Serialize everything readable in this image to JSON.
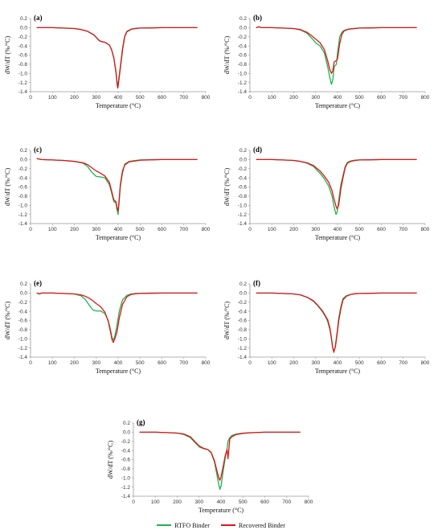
{
  "colors": {
    "rtfo": "#1db44a",
    "recovered": "#e0141c",
    "axis": "#9a9a9a"
  },
  "legend": {
    "rtfo": "RTFO Binder",
    "recovered": "Recovered Binder"
  },
  "chart_data": [
    {
      "type": "line",
      "label": "(a)",
      "xlabel": "Temperature (°C)",
      "ylabel": "dW/dT (%/°C)",
      "xlim": [
        0,
        800
      ],
      "ylim": [
        -1.4,
        0.2
      ],
      "xticks": [
        0,
        100,
        200,
        300,
        400,
        500,
        600,
        700,
        800
      ],
      "yticks": [
        0.2,
        0,
        -0.2,
        -0.4,
        -0.6,
        -0.8,
        -1.0,
        -1.2,
        -1.4
      ],
      "series": [
        {
          "name": "RTFO Binder",
          "color": "#1db44a",
          "x": [
            30,
            100,
            150,
            200,
            230,
            260,
            290,
            310,
            320,
            340,
            360,
            370,
            380,
            390,
            395,
            398,
            400,
            410,
            420,
            430,
            440,
            460,
            480,
            500,
            550,
            600,
            650,
            700,
            760
          ],
          "y": [
            0,
            0,
            -0.01,
            -0.02,
            -0.04,
            -0.08,
            -0.16,
            -0.26,
            -0.3,
            -0.32,
            -0.38,
            -0.48,
            -0.65,
            -0.95,
            -1.18,
            -1.25,
            -1.22,
            -0.85,
            -0.45,
            -0.18,
            -0.08,
            -0.03,
            -0.015,
            -0.01,
            -0.005,
            0,
            0,
            0,
            0
          ]
        },
        {
          "name": "Recovered Binder",
          "color": "#e0141c",
          "x": [
            30,
            100,
            150,
            200,
            230,
            260,
            290,
            310,
            320,
            340,
            360,
            370,
            380,
            390,
            395,
            398,
            400,
            410,
            420,
            430,
            440,
            460,
            480,
            500,
            550,
            600,
            650,
            700,
            760
          ],
          "y": [
            0,
            0,
            -0.01,
            -0.02,
            -0.04,
            -0.08,
            -0.16,
            -0.27,
            -0.3,
            -0.32,
            -0.38,
            -0.48,
            -0.66,
            -0.98,
            -1.22,
            -1.32,
            -1.28,
            -0.9,
            -0.5,
            -0.2,
            -0.09,
            -0.035,
            -0.02,
            -0.01,
            -0.005,
            0,
            0,
            0,
            0
          ]
        }
      ]
    },
    {
      "type": "line",
      "label": "(b)",
      "xlabel": "Temperature (°C)",
      "ylabel": "dW/dT (%/°C)",
      "xlim": [
        0,
        800
      ],
      "ylim": [
        -1.4,
        0.2
      ],
      "xticks": [
        0,
        100,
        200,
        300,
        400,
        500,
        600,
        700,
        800
      ],
      "yticks": [
        0.2,
        0,
        -0.2,
        -0.4,
        -0.6,
        -0.8,
        -1.0,
        -1.2,
        -1.4
      ],
      "series": [
        {
          "name": "RTFO Binder",
          "color": "#1db44a",
          "x": [
            30,
            40,
            50,
            100,
            150,
            200,
            230,
            260,
            280,
            300,
            320,
            340,
            355,
            365,
            372,
            378,
            385,
            395,
            400,
            410,
            420,
            430,
            450,
            480,
            500,
            550,
            600,
            700,
            760
          ],
          "y": [
            0,
            0.02,
            0,
            0,
            -0.01,
            -0.02,
            -0.05,
            -0.12,
            -0.22,
            -0.33,
            -0.4,
            -0.55,
            -0.85,
            -1.1,
            -1.24,
            -1.15,
            -0.85,
            -0.8,
            -0.55,
            -0.2,
            -0.1,
            -0.06,
            -0.03,
            -0.015,
            -0.01,
            -0.005,
            0,
            0,
            0
          ]
        },
        {
          "name": "Recovered Binder",
          "color": "#e0141c",
          "x": [
            30,
            40,
            50,
            100,
            150,
            200,
            230,
            260,
            280,
            300,
            320,
            340,
            355,
            365,
            372,
            378,
            385,
            395,
            400,
            410,
            420,
            430,
            450,
            480,
            500,
            550,
            600,
            700,
            760
          ],
          "y": [
            0,
            0.02,
            0,
            0,
            -0.01,
            -0.02,
            -0.04,
            -0.1,
            -0.17,
            -0.25,
            -0.33,
            -0.48,
            -0.72,
            -0.92,
            -1.0,
            -0.95,
            -0.75,
            -0.72,
            -0.68,
            -0.35,
            -0.15,
            -0.07,
            -0.035,
            -0.02,
            -0.01,
            -0.005,
            0,
            0,
            0
          ]
        }
      ]
    },
    {
      "type": "line",
      "label": "(c)",
      "xlabel": "Temperature (°C)",
      "ylabel": "dW/dT (%/°C)",
      "xlim": [
        0,
        800
      ],
      "ylim": [
        -1.4,
        0.2
      ],
      "xticks": [
        0,
        100,
        200,
        300,
        400,
        500,
        600,
        700,
        800
      ],
      "yticks": [
        0.2,
        0,
        -0.2,
        -0.4,
        -0.6,
        -0.8,
        -1.0,
        -1.2,
        -1.4
      ],
      "series": [
        {
          "name": "RTFO Binder",
          "color": "#1db44a",
          "x": [
            30,
            50,
            100,
            150,
            200,
            240,
            260,
            280,
            300,
            320,
            340,
            360,
            370,
            380,
            390,
            395,
            400,
            405,
            410,
            420,
            430,
            450,
            480,
            500,
            550,
            600,
            700,
            760
          ],
          "y": [
            0.02,
            0,
            -0.01,
            -0.02,
            -0.04,
            -0.08,
            -0.15,
            -0.28,
            -0.37,
            -0.38,
            -0.4,
            -0.55,
            -0.72,
            -0.92,
            -0.95,
            -1.1,
            -1.2,
            -0.9,
            -0.6,
            -0.3,
            -0.1,
            -0.04,
            -0.02,
            -0.01,
            -0.005,
            0,
            0,
            0
          ]
        },
        {
          "name": "Recovered Binder",
          "color": "#e0141c",
          "x": [
            30,
            50,
            100,
            150,
            200,
            240,
            260,
            280,
            300,
            320,
            340,
            360,
            370,
            380,
            390,
            395,
            400,
            405,
            410,
            420,
            430,
            450,
            480,
            500,
            550,
            600,
            700,
            760
          ],
          "y": [
            0.02,
            0,
            -0.01,
            -0.02,
            -0.04,
            -0.07,
            -0.11,
            -0.18,
            -0.25,
            -0.3,
            -0.36,
            -0.5,
            -0.68,
            -0.88,
            -0.92,
            -1.05,
            -1.12,
            -0.85,
            -0.55,
            -0.25,
            -0.12,
            -0.05,
            -0.03,
            -0.015,
            -0.005,
            0,
            0,
            0
          ]
        }
      ]
    },
    {
      "type": "line",
      "label": "(d)",
      "xlabel": "Temperature (°C)",
      "ylabel": "dW/dT (%/°C)",
      "xlim": [
        0,
        800
      ],
      "ylim": [
        -1.4,
        0.2
      ],
      "xticks": [
        0,
        100,
        200,
        300,
        400,
        500,
        600,
        700,
        800
      ],
      "yticks": [
        0.2,
        0,
        -0.2,
        -0.4,
        -0.6,
        -0.8,
        -1.0,
        -1.2,
        -1.4
      ],
      "series": [
        {
          "name": "RTFO Binder",
          "color": "#1db44a",
          "x": [
            30,
            100,
            150,
            200,
            230,
            260,
            290,
            320,
            340,
            360,
            375,
            385,
            393,
            398,
            405,
            415,
            425,
            435,
            445,
            460,
            480,
            500,
            550,
            600,
            700,
            760
          ],
          "y": [
            0,
            0,
            -0.01,
            -0.02,
            -0.04,
            -0.08,
            -0.15,
            -0.3,
            -0.42,
            -0.58,
            -0.8,
            -1.05,
            -1.2,
            -1.15,
            -0.9,
            -0.55,
            -0.35,
            -0.15,
            -0.06,
            -0.03,
            -0.015,
            -0.01,
            -0.005,
            0,
            0,
            0
          ]
        },
        {
          "name": "Recovered Binder",
          "color": "#e0141c",
          "x": [
            30,
            100,
            150,
            200,
            230,
            260,
            290,
            320,
            340,
            360,
            375,
            385,
            393,
            398,
            405,
            415,
            425,
            435,
            445,
            460,
            480,
            500,
            550,
            600,
            700,
            760
          ],
          "y": [
            0,
            0,
            -0.01,
            -0.02,
            -0.04,
            -0.07,
            -0.13,
            -0.25,
            -0.36,
            -0.5,
            -0.68,
            -0.88,
            -1.02,
            -1.08,
            -1.0,
            -0.65,
            -0.4,
            -0.18,
            -0.08,
            -0.04,
            -0.02,
            -0.01,
            -0.005,
            0,
            0,
            0
          ]
        }
      ]
    },
    {
      "type": "line",
      "label": "(e)",
      "xlabel": "Temperature (°C)",
      "ylabel": "dW/dT (%/°C)",
      "xlim": [
        0,
        800
      ],
      "ylim": [
        -1.4,
        0.2
      ],
      "xticks": [
        0,
        100,
        200,
        300,
        400,
        500,
        600,
        700,
        800
      ],
      "yticks": [
        0.2,
        0,
        -0.2,
        -0.4,
        -0.6,
        -0.8,
        -1.0,
        -1.2,
        -1.4
      ],
      "series": [
        {
          "name": "RTFO Binder",
          "color": "#1db44a",
          "x": [
            30,
            40,
            50,
            100,
            150,
            200,
            230,
            250,
            270,
            285,
            300,
            320,
            340,
            355,
            365,
            372,
            378,
            385,
            395,
            405,
            420,
            440,
            460,
            480,
            500,
            550,
            600,
            700,
            760
          ],
          "y": [
            0,
            -0.02,
            0,
            0,
            -0.01,
            -0.02,
            -0.06,
            -0.14,
            -0.28,
            -0.37,
            -0.39,
            -0.39,
            -0.45,
            -0.6,
            -0.8,
            -0.98,
            -1.02,
            -0.95,
            -0.7,
            -0.4,
            -0.15,
            -0.05,
            -0.02,
            -0.01,
            -0.005,
            0,
            0,
            0,
            0
          ]
        },
        {
          "name": "Recovered Binder",
          "color": "#e0141c",
          "x": [
            30,
            40,
            50,
            100,
            150,
            200,
            230,
            250,
            270,
            285,
            300,
            320,
            340,
            355,
            365,
            372,
            378,
            385,
            395,
            405,
            420,
            440,
            460,
            480,
            500,
            550,
            600,
            700,
            760
          ],
          "y": [
            0,
            -0.02,
            0,
            0,
            -0.01,
            -0.02,
            -0.04,
            -0.07,
            -0.12,
            -0.17,
            -0.23,
            -0.3,
            -0.42,
            -0.62,
            -0.85,
            -1.02,
            -1.08,
            -1.0,
            -0.85,
            -0.55,
            -0.25,
            -0.08,
            -0.03,
            -0.015,
            -0.01,
            -0.005,
            0,
            0,
            0
          ]
        }
      ]
    },
    {
      "type": "line",
      "label": "(f)",
      "xlabel": "Temperature (°C)",
      "ylabel": "dW/dT (%/°C)",
      "xlim": [
        0,
        800
      ],
      "ylim": [
        -1.4,
        0.2
      ],
      "xticks": [
        0,
        100,
        200,
        300,
        400,
        500,
        600,
        700,
        800
      ],
      "yticks": [
        0.2,
        0,
        -0.2,
        -0.4,
        -0.6,
        -0.8,
        -1.0,
        -1.2,
        -1.4
      ],
      "series": [
        {
          "name": "RTFO Binder",
          "color": "#1db44a",
          "x": [
            30,
            100,
            150,
            200,
            230,
            260,
            290,
            310,
            330,
            345,
            355,
            365,
            372,
            378,
            383,
            390,
            398,
            405,
            415,
            425,
            440,
            460,
            480,
            500,
            550,
            600,
            700,
            760
          ],
          "y": [
            0,
            0,
            -0.01,
            -0.02,
            -0.04,
            -0.09,
            -0.18,
            -0.28,
            -0.4,
            -0.52,
            -0.62,
            -0.8,
            -1.0,
            -1.2,
            -1.3,
            -1.15,
            -0.85,
            -0.55,
            -0.3,
            -0.12,
            -0.06,
            -0.03,
            -0.015,
            -0.01,
            -0.005,
            0,
            0,
            0
          ]
        },
        {
          "name": "Recovered Binder",
          "color": "#e0141c",
          "x": [
            30,
            100,
            150,
            200,
            230,
            260,
            290,
            310,
            330,
            345,
            355,
            365,
            372,
            378,
            383,
            390,
            398,
            405,
            415,
            425,
            440,
            460,
            480,
            500,
            550,
            600,
            700,
            760
          ],
          "y": [
            0,
            0,
            -0.01,
            -0.02,
            -0.04,
            -0.09,
            -0.17,
            -0.27,
            -0.38,
            -0.5,
            -0.58,
            -0.76,
            -0.98,
            -1.2,
            -1.28,
            -1.18,
            -0.9,
            -0.62,
            -0.35,
            -0.15,
            -0.07,
            -0.03,
            -0.015,
            -0.01,
            -0.005,
            0,
            0,
            0
          ]
        }
      ]
    },
    {
      "type": "line",
      "label": "(g)",
      "xlabel": "Temperature (°C)",
      "ylabel": "dW/dT (%/°C)",
      "xlim": [
        0,
        800
      ],
      "ylim": [
        -1.4,
        0.2
      ],
      "xticks": [
        0,
        100,
        200,
        300,
        400,
        500,
        600,
        700,
        800
      ],
      "yticks": [
        0.2,
        0,
        -0.2,
        -0.4,
        -0.6,
        -0.8,
        -1.0,
        -1.2,
        -1.4
      ],
      "series": [
        {
          "name": "RTFO Binder",
          "color": "#1db44a",
          "x": [
            30,
            100,
            150,
            200,
            230,
            260,
            280,
            300,
            320,
            340,
            355,
            370,
            380,
            390,
            395,
            400,
            410,
            420,
            428,
            432,
            440,
            450,
            470,
            500,
            550,
            600,
            700,
            760
          ],
          "y": [
            0,
            0,
            -0.01,
            -0.02,
            -0.05,
            -0.12,
            -0.22,
            -0.32,
            -0.36,
            -0.38,
            -0.45,
            -0.65,
            -0.9,
            -1.15,
            -1.25,
            -1.18,
            -0.85,
            -0.55,
            -0.35,
            -0.2,
            -0.12,
            -0.07,
            -0.04,
            -0.02,
            -0.01,
            0,
            0,
            0
          ]
        },
        {
          "name": "Recovered Binder",
          "color": "#e0141c",
          "x": [
            30,
            100,
            150,
            200,
            230,
            260,
            280,
            300,
            320,
            340,
            355,
            370,
            380,
            390,
            395,
            400,
            410,
            420,
            428,
            432,
            440,
            450,
            470,
            500,
            550,
            600,
            700,
            760
          ],
          "y": [
            0,
            0,
            -0.01,
            -0.02,
            -0.04,
            -0.1,
            -0.2,
            -0.3,
            -0.35,
            -0.38,
            -0.44,
            -0.62,
            -0.82,
            -1.0,
            -1.05,
            -0.98,
            -0.75,
            -0.5,
            -0.38,
            -0.58,
            -0.15,
            -0.1,
            -0.05,
            -0.025,
            -0.01,
            0,
            0,
            0
          ]
        }
      ]
    }
  ]
}
